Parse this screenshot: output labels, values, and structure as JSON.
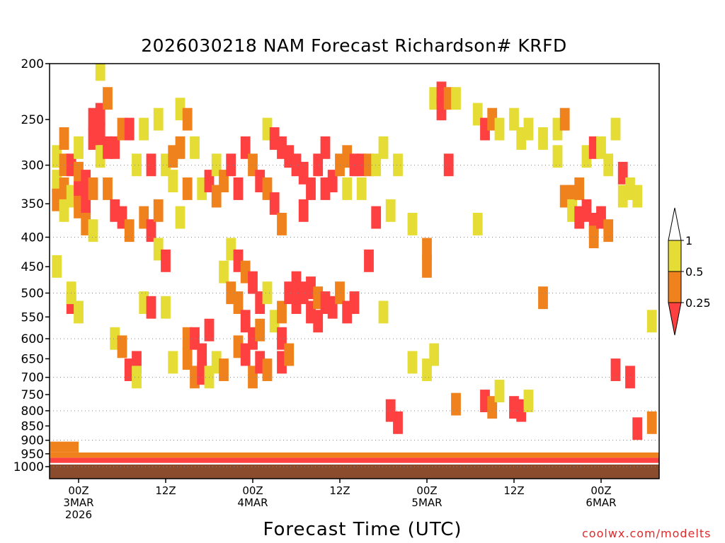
{
  "chart_data": {
    "type": "heatmap",
    "title": "2026030218 NAM Forecast Richardson# KRFD",
    "xlabel": "Forecast Time (UTC)",
    "ylabel": "Pressure (hPa)",
    "y_scale": "log-pressure",
    "ylim": [
      1000,
      200
    ],
    "y_ticks": [
      200,
      250,
      300,
      350,
      400,
      450,
      500,
      550,
      600,
      650,
      700,
      750,
      800,
      850,
      900,
      950,
      1000
    ],
    "xlim_hours": [
      -4,
      80
    ],
    "x_ticks": [
      {
        "hour": 0,
        "lines": [
          "00Z",
          "3MAR",
          "2026"
        ]
      },
      {
        "hour": 12,
        "lines": [
          "12Z"
        ]
      },
      {
        "hour": 24,
        "lines": [
          "00Z",
          "4MAR"
        ]
      },
      {
        "hour": 36,
        "lines": [
          "12Z"
        ]
      },
      {
        "hour": 48,
        "lines": [
          "00Z",
          "5MAR"
        ]
      },
      {
        "hour": 60,
        "lines": [
          "12Z"
        ]
      },
      {
        "hour": 72,
        "lines": [
          "00Z",
          "6MAR"
        ]
      }
    ],
    "dotted_grid_levels": [
      300,
      400,
      500,
      600,
      700,
      800,
      900,
      1000
    ],
    "ground_color": "#8b4c2e",
    "legend": {
      "placement": "right",
      "bins": [
        {
          "range": "1 - 0.5",
          "color": "#e5dc35"
        },
        {
          "range": "0.5 - 0.25",
          "color": "#f0821e"
        },
        {
          "range": "< 0.25",
          "color": "#ff4040"
        }
      ],
      "tick_labels": [
        "1",
        "0.5",
        "0.25"
      ]
    },
    "cells": [
      {
        "t": -3,
        "p": 290,
        "c": 1
      },
      {
        "t": -3,
        "p": 320,
        "c": 1
      },
      {
        "t": -3,
        "p": 345,
        "c": 2
      },
      {
        "t": -3,
        "p": 450,
        "c": 1
      },
      {
        "t": -2,
        "p": 270,
        "c": 2
      },
      {
        "t": -2,
        "p": 300,
        "c": 2
      },
      {
        "t": -2,
        "p": 330,
        "c": 2
      },
      {
        "t": -2,
        "p": 360,
        "c": 1
      },
      {
        "t": -1,
        "p": 300,
        "c": 3
      },
      {
        "t": -1,
        "p": 340,
        "c": 1
      },
      {
        "t": -1,
        "p": 520,
        "c": 3
      },
      {
        "t": -1,
        "p": 500,
        "c": 1
      },
      {
        "t": 0,
        "p": 280,
        "c": 1
      },
      {
        "t": 0,
        "p": 310,
        "c": 2
      },
      {
        "t": 0,
        "p": 335,
        "c": 3
      },
      {
        "t": 0,
        "p": 355,
        "c": 2
      },
      {
        "t": 0,
        "p": 540,
        "c": 1
      },
      {
        "t": 1,
        "p": 320,
        "c": 3
      },
      {
        "t": 1,
        "p": 350,
        "c": 3
      },
      {
        "t": 1,
        "p": 380,
        "c": 2
      },
      {
        "t": 2,
        "p": 250,
        "c": 3
      },
      {
        "t": 2,
        "p": 270,
        "c": 3
      },
      {
        "t": 2,
        "p": 330,
        "c": 2
      },
      {
        "t": 2,
        "p": 390,
        "c": 1
      },
      {
        "t": 3,
        "p": 245,
        "c": 3
      },
      {
        "t": 3,
        "p": 265,
        "c": 3
      },
      {
        "t": 3,
        "p": 290,
        "c": 1
      },
      {
        "t": 3,
        "p": 205,
        "c": 1
      },
      {
        "t": 4,
        "p": 280,
        "c": 3
      },
      {
        "t": 4,
        "p": 330,
        "c": 2
      },
      {
        "t": 4,
        "p": 230,
        "c": 2
      },
      {
        "t": 5,
        "p": 280,
        "c": 3
      },
      {
        "t": 5,
        "p": 360,
        "c": 3
      },
      {
        "t": 5,
        "p": 600,
        "c": 1
      },
      {
        "t": 6,
        "p": 260,
        "c": 2
      },
      {
        "t": 6,
        "p": 370,
        "c": 3
      },
      {
        "t": 6,
        "p": 620,
        "c": 2
      },
      {
        "t": 7,
        "p": 260,
        "c": 3
      },
      {
        "t": 7,
        "p": 390,
        "c": 2
      },
      {
        "t": 7,
        "p": 680,
        "c": 3
      },
      {
        "t": 8,
        "p": 300,
        "c": 1
      },
      {
        "t": 8,
        "p": 660,
        "c": 3
      },
      {
        "t": 8,
        "p": 700,
        "c": 1
      },
      {
        "t": 9,
        "p": 260,
        "c": 1
      },
      {
        "t": 9,
        "p": 370,
        "c": 2
      },
      {
        "t": 9,
        "p": 520,
        "c": 1
      },
      {
        "t": 10,
        "p": 300,
        "c": 3
      },
      {
        "t": 10,
        "p": 390,
        "c": 3
      },
      {
        "t": 10,
        "p": 530,
        "c": 3
      },
      {
        "t": 11,
        "p": 250,
        "c": 1
      },
      {
        "t": 11,
        "p": 360,
        "c": 2
      },
      {
        "t": 11,
        "p": 420,
        "c": 1
      },
      {
        "t": 12,
        "p": 300,
        "c": 1
      },
      {
        "t": 12,
        "p": 440,
        "c": 3
      },
      {
        "t": 12,
        "p": 530,
        "c": 1
      },
      {
        "t": 13,
        "p": 290,
        "c": 2
      },
      {
        "t": 13,
        "p": 320,
        "c": 1
      },
      {
        "t": 13,
        "p": 660,
        "c": 1
      },
      {
        "t": 14,
        "p": 240,
        "c": 1
      },
      {
        "t": 14,
        "p": 280,
        "c": 2
      },
      {
        "t": 14,
        "p": 370,
        "c": 1
      },
      {
        "t": 15,
        "p": 250,
        "c": 2
      },
      {
        "t": 15,
        "p": 330,
        "c": 2
      },
      {
        "t": 15,
        "p": 600,
        "c": 2
      },
      {
        "t": 15,
        "p": 650,
        "c": 2
      },
      {
        "t": 16,
        "p": 280,
        "c": 1
      },
      {
        "t": 16,
        "p": 600,
        "c": 3
      },
      {
        "t": 16,
        "p": 700,
        "c": 2
      },
      {
        "t": 17,
        "p": 330,
        "c": 1
      },
      {
        "t": 17,
        "p": 640,
        "c": 3
      },
      {
        "t": 17,
        "p": 690,
        "c": 3
      },
      {
        "t": 18,
        "p": 320,
        "c": 3
      },
      {
        "t": 18,
        "p": 580,
        "c": 3
      },
      {
        "t": 18,
        "p": 700,
        "c": 1
      },
      {
        "t": 19,
        "p": 300,
        "c": 1
      },
      {
        "t": 19,
        "p": 340,
        "c": 2
      },
      {
        "t": 19,
        "p": 660,
        "c": 1
      },
      {
        "t": 20,
        "p": 320,
        "c": 2
      },
      {
        "t": 20,
        "p": 460,
        "c": 1
      },
      {
        "t": 20,
        "p": 680,
        "c": 2
      },
      {
        "t": 21,
        "p": 300,
        "c": 3
      },
      {
        "t": 21,
        "p": 420,
        "c": 1
      },
      {
        "t": 21,
        "p": 500,
        "c": 2
      },
      {
        "t": 22,
        "p": 330,
        "c": 3
      },
      {
        "t": 22,
        "p": 440,
        "c": 3
      },
      {
        "t": 22,
        "p": 520,
        "c": 2
      },
      {
        "t": 22,
        "p": 620,
        "c": 2
      },
      {
        "t": 23,
        "p": 280,
        "c": 3
      },
      {
        "t": 23,
        "p": 460,
        "c": 2
      },
      {
        "t": 23,
        "p": 560,
        "c": 3
      },
      {
        "t": 23,
        "p": 640,
        "c": 3
      },
      {
        "t": 24,
        "p": 300,
        "c": 2
      },
      {
        "t": 24,
        "p": 480,
        "c": 3
      },
      {
        "t": 24,
        "p": 600,
        "c": 3
      },
      {
        "t": 24,
        "p": 700,
        "c": 2
      },
      {
        "t": 25,
        "p": 320,
        "c": 3
      },
      {
        "t": 25,
        "p": 520,
        "c": 3
      },
      {
        "t": 25,
        "p": 580,
        "c": 2
      },
      {
        "t": 25,
        "p": 660,
        "c": 3
      },
      {
        "t": 26,
        "p": 260,
        "c": 1
      },
      {
        "t": 26,
        "p": 330,
        "c": 2
      },
      {
        "t": 26,
        "p": 500,
        "c": 1
      },
      {
        "t": 26,
        "p": 680,
        "c": 2
      },
      {
        "t": 27,
        "p": 270,
        "c": 3
      },
      {
        "t": 27,
        "p": 350,
        "c": 3
      },
      {
        "t": 27,
        "p": 560,
        "c": 1
      },
      {
        "t": 28,
        "p": 280,
        "c": 3
      },
      {
        "t": 28,
        "p": 380,
        "c": 2
      },
      {
        "t": 28,
        "p": 540,
        "c": 2
      },
      {
        "t": 28,
        "p": 600,
        "c": 3
      },
      {
        "t": 28,
        "p": 660,
        "c": 3
      },
      {
        "t": 29,
        "p": 290,
        "c": 3
      },
      {
        "t": 29,
        "p": 500,
        "c": 3
      },
      {
        "t": 29,
        "p": 640,
        "c": 2
      },
      {
        "t": 30,
        "p": 300,
        "c": 3
      },
      {
        "t": 30,
        "p": 480,
        "c": 3
      },
      {
        "t": 30,
        "p": 520,
        "c": 3
      },
      {
        "t": 31,
        "p": 310,
        "c": 3
      },
      {
        "t": 31,
        "p": 360,
        "c": 3
      },
      {
        "t": 31,
        "p": 500,
        "c": 3
      },
      {
        "t": 32,
        "p": 330,
        "c": 3
      },
      {
        "t": 32,
        "p": 490,
        "c": 3
      },
      {
        "t": 32,
        "p": 540,
        "c": 3
      },
      {
        "t": 33,
        "p": 300,
        "c": 3
      },
      {
        "t": 33,
        "p": 510,
        "c": 2
      },
      {
        "t": 33,
        "p": 560,
        "c": 3
      },
      {
        "t": 34,
        "p": 280,
        "c": 3
      },
      {
        "t": 34,
        "p": 330,
        "c": 3
      },
      {
        "t": 34,
        "p": 520,
        "c": 3
      },
      {
        "t": 35,
        "p": 320,
        "c": 3
      },
      {
        "t": 35,
        "p": 530,
        "c": 3
      },
      {
        "t": 36,
        "p": 300,
        "c": 2
      },
      {
        "t": 36,
        "p": 500,
        "c": 2
      },
      {
        "t": 37,
        "p": 290,
        "c": 2
      },
      {
        "t": 37,
        "p": 330,
        "c": 1
      },
      {
        "t": 37,
        "p": 540,
        "c": 3
      },
      {
        "t": 38,
        "p": 300,
        "c": 3
      },
      {
        "t": 38,
        "p": 520,
        "c": 3
      },
      {
        "t": 39,
        "p": 300,
        "c": 3
      },
      {
        "t": 39,
        "p": 330,
        "c": 1
      },
      {
        "t": 40,
        "p": 300,
        "c": 2
      },
      {
        "t": 40,
        "p": 440,
        "c": 3
      },
      {
        "t": 41,
        "p": 300,
        "c": 1
      },
      {
        "t": 41,
        "p": 370,
        "c": 3
      },
      {
        "t": 42,
        "p": 280,
        "c": 1
      },
      {
        "t": 42,
        "p": 540,
        "c": 1
      },
      {
        "t": 43,
        "p": 360,
        "c": 1
      },
      {
        "t": 43,
        "p": 800,
        "c": 3
      },
      {
        "t": 44,
        "p": 300,
        "c": 1
      },
      {
        "t": 44,
        "p": 840,
        "c": 3
      },
      {
        "t": 46,
        "p": 380,
        "c": 1
      },
      {
        "t": 46,
        "p": 660,
        "c": 1
      },
      {
        "t": 48,
        "p": 420,
        "c": 2
      },
      {
        "t": 48,
        "p": 450,
        "c": 2
      },
      {
        "t": 48,
        "p": 680,
        "c": 1
      },
      {
        "t": 49,
        "p": 230,
        "c": 1
      },
      {
        "t": 49,
        "p": 640,
        "c": 1
      },
      {
        "t": 50,
        "p": 225,
        "c": 3
      },
      {
        "t": 50,
        "p": 240,
        "c": 3
      },
      {
        "t": 51,
        "p": 230,
        "c": 2
      },
      {
        "t": 51,
        "p": 300,
        "c": 3
      },
      {
        "t": 52,
        "p": 230,
        "c": 1
      },
      {
        "t": 52,
        "p": 780,
        "c": 2
      },
      {
        "t": 55,
        "p": 245,
        "c": 1
      },
      {
        "t": 55,
        "p": 380,
        "c": 1
      },
      {
        "t": 56,
        "p": 260,
        "c": 3
      },
      {
        "t": 56,
        "p": 770,
        "c": 3
      },
      {
        "t": 57,
        "p": 250,
        "c": 2
      },
      {
        "t": 57,
        "p": 790,
        "c": 2
      },
      {
        "t": 58,
        "p": 260,
        "c": 1
      },
      {
        "t": 58,
        "p": 740,
        "c": 1
      },
      {
        "t": 60,
        "p": 250,
        "c": 1
      },
      {
        "t": 60,
        "p": 790,
        "c": 3
      },
      {
        "t": 61,
        "p": 270,
        "c": 1
      },
      {
        "t": 61,
        "p": 800,
        "c": 3
      },
      {
        "t": 62,
        "p": 260,
        "c": 1
      },
      {
        "t": 62,
        "p": 770,
        "c": 1
      },
      {
        "t": 64,
        "p": 270,
        "c": 1
      },
      {
        "t": 64,
        "p": 510,
        "c": 2
      },
      {
        "t": 66,
        "p": 260,
        "c": 1
      },
      {
        "t": 66,
        "p": 290,
        "c": 1
      },
      {
        "t": 67,
        "p": 250,
        "c": 2
      },
      {
        "t": 67,
        "p": 340,
        "c": 2
      },
      {
        "t": 68,
        "p": 340,
        "c": 2
      },
      {
        "t": 68,
        "p": 360,
        "c": 1
      },
      {
        "t": 69,
        "p": 330,
        "c": 2
      },
      {
        "t": 69,
        "p": 370,
        "c": 3
      },
      {
        "t": 70,
        "p": 290,
        "c": 1
      },
      {
        "t": 70,
        "p": 360,
        "c": 3
      },
      {
        "t": 71,
        "p": 280,
        "c": 3
      },
      {
        "t": 71,
        "p": 380,
        "c": 3
      },
      {
        "t": 71,
        "p": 400,
        "c": 2
      },
      {
        "t": 72,
        "p": 280,
        "c": 1
      },
      {
        "t": 72,
        "p": 370,
        "c": 3
      },
      {
        "t": 73,
        "p": 300,
        "c": 1
      },
      {
        "t": 73,
        "p": 390,
        "c": 2
      },
      {
        "t": 74,
        "p": 260,
        "c": 1
      },
      {
        "t": 74,
        "p": 680,
        "c": 3
      },
      {
        "t": 75,
        "p": 310,
        "c": 3
      },
      {
        "t": 75,
        "p": 340,
        "c": 1
      },
      {
        "t": 76,
        "p": 330,
        "c": 1
      },
      {
        "t": 76,
        "p": 700,
        "c": 3
      },
      {
        "t": 77,
        "p": 340,
        "c": 1
      },
      {
        "t": 77,
        "p": 860,
        "c": 3
      },
      {
        "t": 79,
        "p": 560,
        "c": 1
      },
      {
        "t": 79,
        "p": 840,
        "c": 2
      }
    ],
    "low_level_bands": [
      {
        "t0": -4,
        "t1": 80,
        "p_top": 965,
        "p_bot": 985,
        "c": 3
      },
      {
        "t0": -4,
        "t1": 80,
        "p_top": 945,
        "p_bot": 965,
        "c": 2
      },
      {
        "t0": -4,
        "t1": 0,
        "p_top": 905,
        "p_bot": 945,
        "c": 2
      }
    ]
  },
  "legend_labels": {
    "top": "1",
    "mid": "0.5",
    "low": "0.25"
  },
  "credit": "coolwx.com/modelts"
}
